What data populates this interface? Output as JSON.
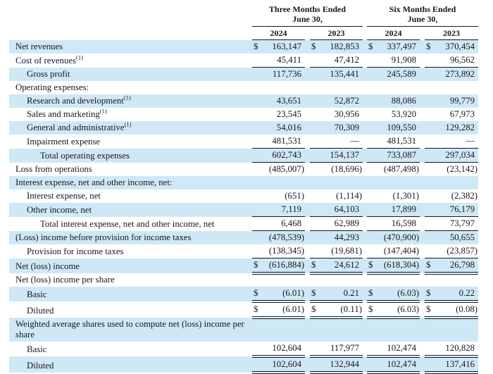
{
  "table": {
    "header": {
      "groups": [
        {
          "line1": "Three Months Ended",
          "line2": "June 30,"
        },
        {
          "line1": "Six Months Ended",
          "line2": "June 30,"
        }
      ],
      "years": [
        "2024",
        "2023",
        "2024",
        "2023"
      ]
    },
    "style": {
      "shade_color": "#cfe8f6",
      "text_color": "#16161e",
      "rule_color": "#16161e"
    },
    "rows": [
      {
        "label": "Net revenues",
        "sup": "",
        "indent": 0,
        "shade": true,
        "dollar": true,
        "border": "none",
        "values": [
          "163,147",
          "182,853",
          "337,497",
          "370,454"
        ]
      },
      {
        "label": "Cost of revenues",
        "sup": "(1)",
        "indent": 0,
        "shade": false,
        "dollar": false,
        "border": "single",
        "values": [
          "45,411",
          "47,412",
          "91,908",
          "96,562"
        ]
      },
      {
        "label": "Gross profit",
        "sup": "",
        "indent": 1,
        "shade": true,
        "dollar": false,
        "border": "none",
        "values": [
          "117,736",
          "135,441",
          "245,589",
          "273,892"
        ]
      },
      {
        "label": "Operating expenses:",
        "sup": "",
        "indent": 0,
        "shade": false,
        "dollar": false,
        "border": "none",
        "values": []
      },
      {
        "label": "Research and development",
        "sup": "(1)",
        "indent": 1,
        "shade": true,
        "dollar": false,
        "border": "none",
        "values": [
          "43,651",
          "52,872",
          "88,086",
          "99,779"
        ]
      },
      {
        "label": "Sales and marketing",
        "sup": "(1)",
        "indent": 1,
        "shade": false,
        "dollar": false,
        "border": "none",
        "values": [
          "23,545",
          "30,956",
          "53,920",
          "67,973"
        ]
      },
      {
        "label": "General and administrative",
        "sup": "(1)",
        "indent": 1,
        "shade": true,
        "dollar": false,
        "border": "none",
        "values": [
          "54,016",
          "70,309",
          "109,550",
          "129,282"
        ]
      },
      {
        "label": "Impairment expense",
        "sup": "",
        "indent": 1,
        "shade": false,
        "dollar": false,
        "border": "single",
        "values": [
          "481,531",
          "—",
          "481,531",
          "—"
        ]
      },
      {
        "label": "Total operating expenses",
        "sup": "",
        "indent": 2,
        "shade": true,
        "dollar": false,
        "border": "single",
        "values": [
          "602,743",
          "154,137",
          "733,087",
          "297,034"
        ]
      },
      {
        "label": "Loss from operations",
        "sup": "",
        "indent": 0,
        "shade": false,
        "dollar": false,
        "border": "none",
        "values": [
          "(485,007)",
          "(18,696)",
          "(487,498)",
          "(23,142)"
        ]
      },
      {
        "label": "Interest expense, net and other income, net:",
        "sup": "",
        "indent": 0,
        "shade": true,
        "dollar": false,
        "border": "none",
        "values": []
      },
      {
        "label": "Interest expense, net",
        "sup": "",
        "indent": 1,
        "shade": false,
        "dollar": false,
        "border": "none",
        "values": [
          "(651)",
          "(1,114)",
          "(1,301)",
          "(2,382)"
        ]
      },
      {
        "label": "Other income, net",
        "sup": "",
        "indent": 1,
        "shade": true,
        "dollar": false,
        "border": "single",
        "values": [
          "7,119",
          "64,103",
          "17,899",
          "76,179"
        ]
      },
      {
        "label": "Total interest expense, net and other income, net",
        "sup": "",
        "indent": 2,
        "shade": false,
        "dollar": false,
        "border": "single",
        "values": [
          "6,468",
          "62,989",
          "16,598",
          "73,797"
        ]
      },
      {
        "label": "(Loss) income before provision for income taxes",
        "sup": "",
        "indent": 0,
        "shade": true,
        "dollar": false,
        "border": "none",
        "values": [
          "(478,539)",
          "44,293",
          "(470,900)",
          "50,655"
        ]
      },
      {
        "label": "Provision for income taxes",
        "sup": "",
        "indent": 1,
        "shade": false,
        "dollar": false,
        "border": "single",
        "values": [
          "(138,345)",
          "(19,681)",
          "(147,404)",
          "(23,857)"
        ]
      },
      {
        "label": "Net (loss) income",
        "sup": "",
        "indent": 0,
        "shade": true,
        "dollar": true,
        "border": "double",
        "values": [
          "(616,884)",
          "24,612",
          "(618,304)",
          "26,798"
        ]
      },
      {
        "label": "Net (loss) income per share",
        "sup": "",
        "indent": 0,
        "shade": false,
        "dollar": false,
        "border": "none",
        "values": []
      },
      {
        "label": "Basic",
        "sup": "",
        "indent": 1,
        "shade": true,
        "dollar": true,
        "border": "double",
        "values": [
          "(6.01)",
          "0.21",
          "(6.03)",
          "0.22"
        ]
      },
      {
        "label": "Diluted",
        "sup": "",
        "indent": 1,
        "shade": false,
        "dollar": true,
        "border": "double",
        "values": [
          "(6.01)",
          "(0.11)",
          "(6.03)",
          "(0.08)"
        ]
      },
      {
        "label": "Weighted average shares used to compute net (loss) income per share",
        "sup": "",
        "indent": 0,
        "shade": true,
        "dollar": false,
        "border": "none",
        "values": []
      },
      {
        "label": "Basic",
        "sup": "",
        "indent": 1,
        "shade": false,
        "dollar": false,
        "border": "double",
        "values": [
          "102,604",
          "117,977",
          "102,474",
          "120,828"
        ]
      },
      {
        "label": "Diluted",
        "sup": "",
        "indent": 1,
        "shade": true,
        "dollar": false,
        "border": "double",
        "values": [
          "102,604",
          "132,944",
          "102,474",
          "137,416"
        ]
      }
    ]
  }
}
